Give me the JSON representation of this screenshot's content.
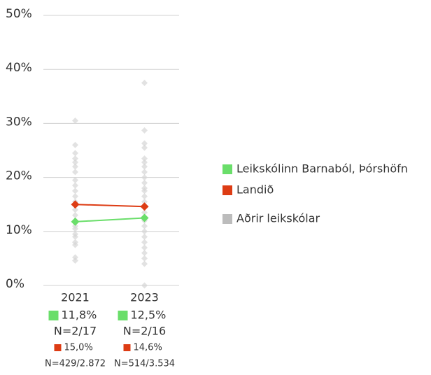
{
  "chart_data": {
    "type": "line",
    "categories": [
      "2021",
      "2023"
    ],
    "ylim": [
      0,
      50
    ],
    "yticks": [
      {
        "value": 0,
        "label": "0%"
      },
      {
        "value": 10,
        "label": "10%"
      },
      {
        "value": 20,
        "label": "20%"
      },
      {
        "value": 30,
        "label": "30%"
      },
      {
        "value": 40,
        "label": "40%"
      },
      {
        "value": 50,
        "label": "50%"
      }
    ],
    "grid": true,
    "legend": "right",
    "series": [
      {
        "name": "Leikskólinn Barnaból, Þórshöfn",
        "color": "#6ade6a",
        "values": [
          11.8,
          12.5
        ],
        "value_labels": [
          "11,8%",
          "12,5%"
        ],
        "n_labels": [
          "N=2/17",
          "N=2/16"
        ]
      },
      {
        "name": "Landið",
        "color": "#dd3c14",
        "values": [
          15.0,
          14.6
        ],
        "value_labels": [
          "15,0%",
          "14,6%"
        ],
        "n_labels": [
          "N=429/2.872",
          "N=514/3.534"
        ]
      },
      {
        "name": "Aðrir leikskólar",
        "color": "#c4c4c4",
        "type": "scatter",
        "values": [
          [
            30.5,
            26,
            24.5,
            23.5,
            22.8,
            22,
            21,
            19.5,
            18.5,
            17.5,
            16.5,
            15.5,
            14,
            13,
            12,
            11,
            10.5,
            9.5,
            9,
            8,
            7.5,
            5.2,
            4.6
          ],
          [
            37.5,
            28.7,
            26.3,
            25.5,
            23.5,
            22.8,
            22,
            21,
            20,
            19,
            18,
            17.5,
            16.5,
            15.5,
            14.5,
            13.5,
            12,
            11,
            10,
            9,
            8,
            7,
            6,
            5,
            4,
            0
          ]
        ]
      }
    ]
  }
}
